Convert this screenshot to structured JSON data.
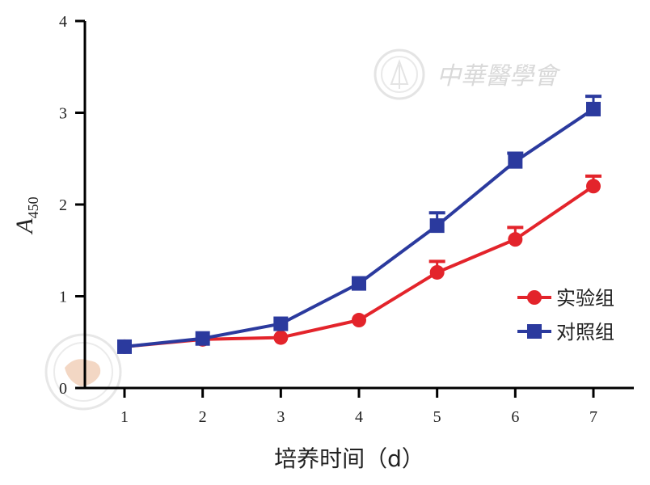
{
  "watermark": {
    "text": "中華醫學會"
  },
  "chart_data": {
    "type": "line",
    "title": "",
    "xlabel": "培养时间（d）",
    "ylabel": "A",
    "ylabel_subscript": "450",
    "x": [
      1,
      2,
      3,
      4,
      5,
      6,
      7
    ],
    "xlim": [
      0.5,
      7.5
    ],
    "ylim": [
      0,
      4
    ],
    "x_ticks": [
      "1",
      "2",
      "3",
      "4",
      "5",
      "6",
      "7"
    ],
    "y_ticks": [
      "0",
      "1",
      "2",
      "3",
      "4"
    ],
    "grid": false,
    "legend_position": "right",
    "series": [
      {
        "name": "实验组",
        "color": "#e3242b",
        "marker": "circle",
        "values": [
          0.45,
          0.53,
          0.55,
          0.74,
          1.26,
          1.62,
          2.2
        ],
        "errors": [
          0.02,
          0.02,
          0.03,
          0.03,
          0.12,
          0.13,
          0.11
        ]
      },
      {
        "name": "对照组",
        "color": "#2b3a9e",
        "marker": "square",
        "values": [
          0.45,
          0.54,
          0.7,
          1.14,
          1.77,
          2.47,
          3.04
        ],
        "errors": [
          0.02,
          0.02,
          0.03,
          0.03,
          0.14,
          0.09,
          0.14
        ]
      }
    ]
  }
}
